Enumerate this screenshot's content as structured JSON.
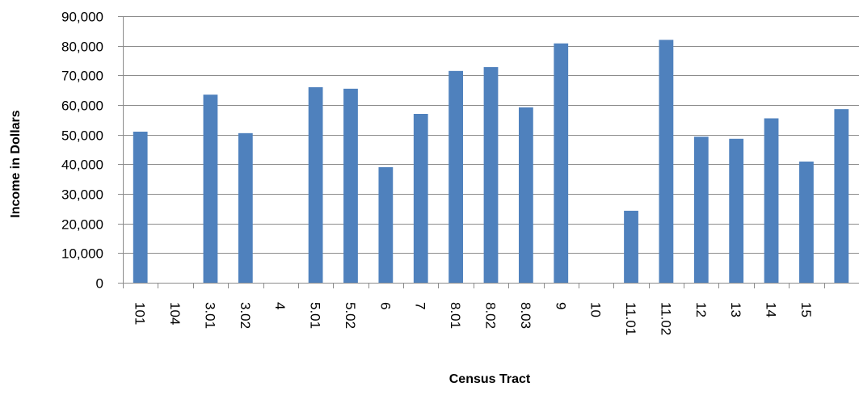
{
  "chart_data": {
    "type": "bar",
    "title": "",
    "xlabel": "Census Tract",
    "ylabel": "Income in Dollars",
    "ylim": [
      0,
      90000
    ],
    "y_ticks": [
      0,
      10000,
      20000,
      30000,
      40000,
      50000,
      60000,
      70000,
      80000,
      90000
    ],
    "y_tick_labels": [
      "0",
      "10,000",
      "20,000",
      "30,000",
      "40,000",
      "50,000",
      "60,000",
      "70,000",
      "80,000",
      "90,000"
    ],
    "grid": "horizontal",
    "legend": "none",
    "bar_color": "#4f81bd",
    "categories": [
      "101",
      "104",
      "3.01",
      "3.02",
      "4",
      "5.01",
      "5.02",
      "6",
      "7",
      "8.01",
      "8.02",
      "8.03",
      "9",
      "10",
      "11.01",
      "11.02",
      "12",
      "13",
      "14",
      "15",
      ""
    ],
    "values": [
      51000,
      null,
      63500,
      50500,
      null,
      66000,
      65500,
      39000,
      57000,
      71500,
      72800,
      59200,
      80800,
      null,
      24300,
      82000,
      49300,
      48600,
      55500,
      40900,
      58600
    ]
  }
}
